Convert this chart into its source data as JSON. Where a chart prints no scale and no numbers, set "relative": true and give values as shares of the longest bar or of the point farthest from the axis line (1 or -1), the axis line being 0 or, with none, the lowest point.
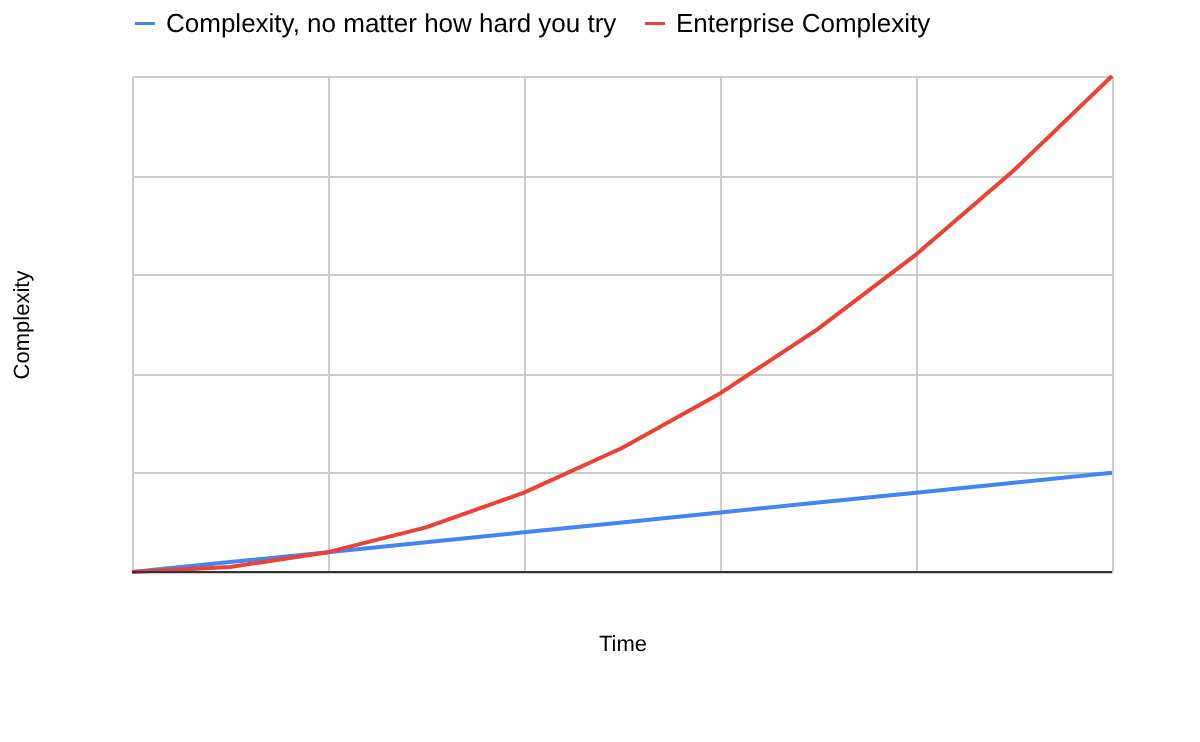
{
  "chart_data": {
    "type": "line",
    "relative": true,
    "xlabel": "Time",
    "ylabel": "Complexity",
    "grid": true,
    "legend": "top",
    "tick_labels": false,
    "marker": "none",
    "line_style": "solid",
    "categories": [
      null,
      null,
      null,
      null,
      null,
      null,
      null,
      null,
      null,
      null,
      null
    ],
    "series": [
      {
        "name": "Complexity, no matter how hard you try",
        "color": "#4285f4",
        "values": [
          0,
          0.02,
          0.04,
          0.06,
          0.08,
          0.1,
          0.12,
          0.14,
          0.16,
          0.18,
          0.2
        ]
      },
      {
        "name": "Enterprise Complexity",
        "color": "#ea4335",
        "values": [
          0,
          0.01,
          0.04,
          0.09,
          0.16,
          0.25,
          0.36,
          0.49,
          0.64,
          0.81,
          1
        ]
      }
    ]
  }
}
